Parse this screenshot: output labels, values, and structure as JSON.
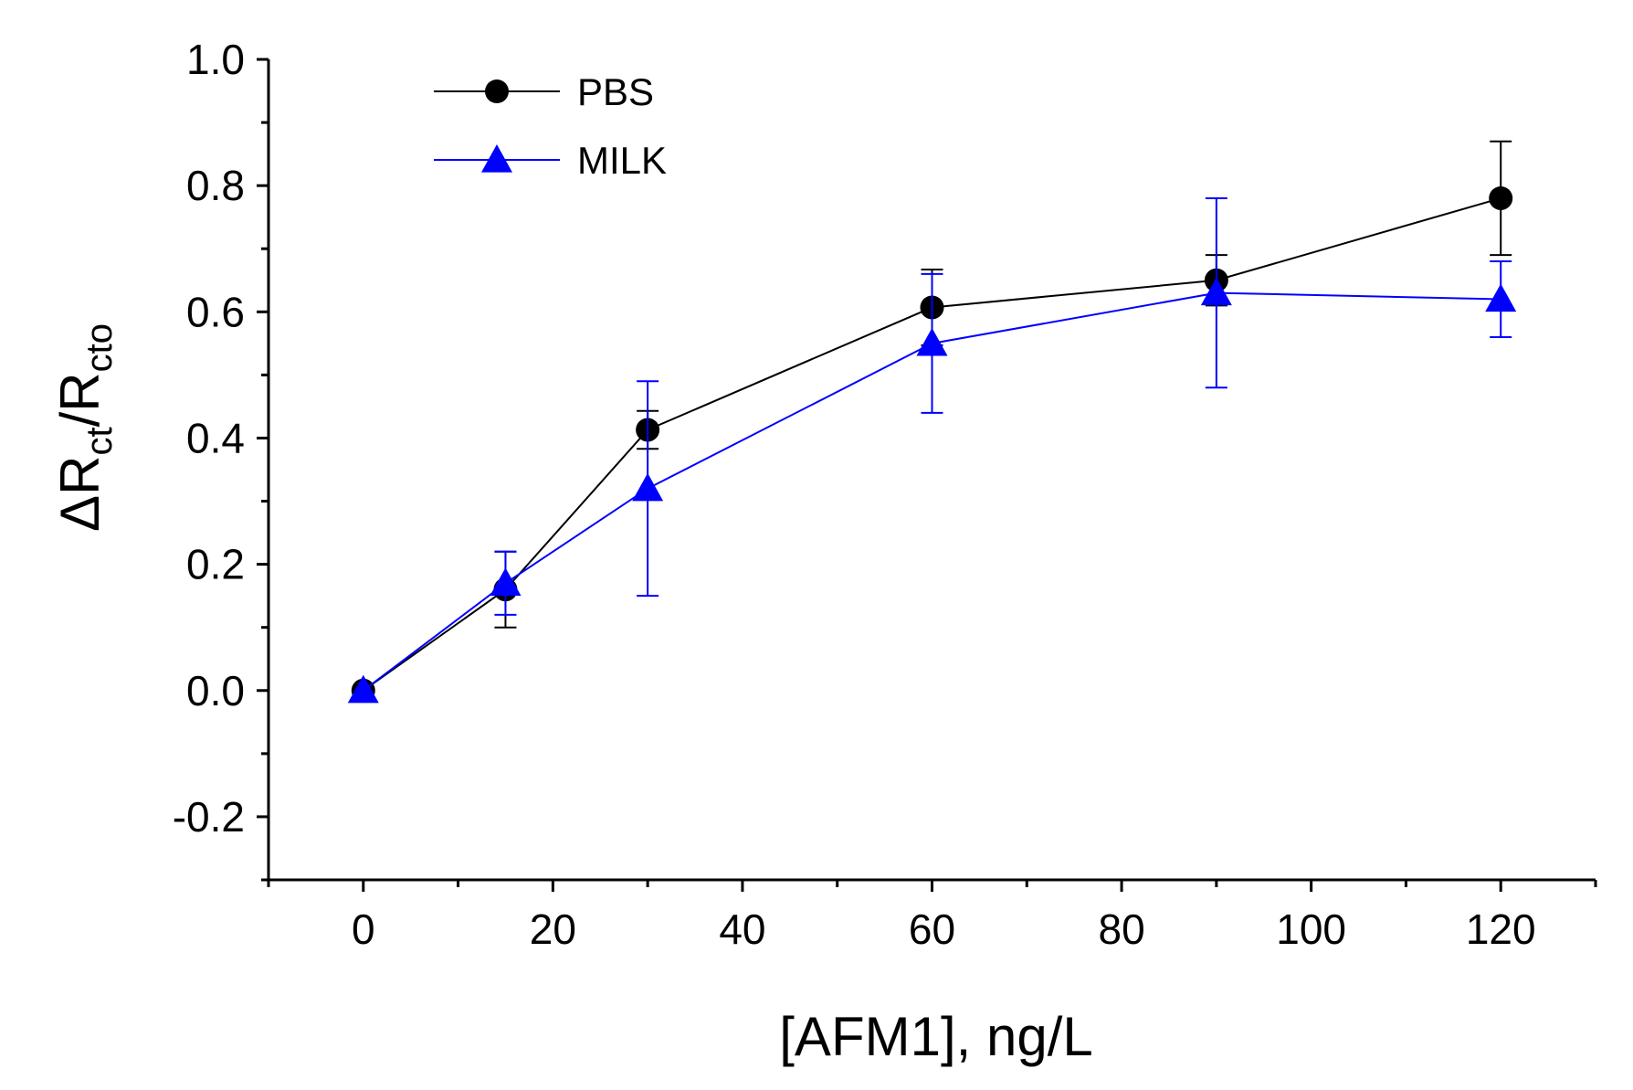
{
  "chart_data": {
    "type": "line",
    "title": "",
    "xlabel": "[AFM1], ng/L",
    "ylabel": {
      "main": "ΔR",
      "sub1": "ct",
      "slash": "/R",
      "sub2": "cto"
    },
    "xlim": [
      -10,
      130
    ],
    "ylim": [
      -0.3,
      1.0
    ],
    "xticks": [
      0,
      20,
      40,
      60,
      80,
      100,
      120
    ],
    "xtick_labels": [
      "0",
      "20",
      "40",
      "60",
      "80",
      "100",
      "120"
    ],
    "yticks": [
      -0.2,
      0.0,
      0.2,
      0.4,
      0.6,
      0.8,
      1.0
    ],
    "ytick_labels": [
      "-0.2",
      "0.0",
      "0.2",
      "0.4",
      "0.6",
      "0.8",
      "1.0"
    ],
    "legend_position": "top-left",
    "series": [
      {
        "name": "PBS",
        "color": "#000000",
        "marker": "circle",
        "x": [
          0,
          15,
          30,
          60,
          90,
          120
        ],
        "y": [
          0.0,
          0.16,
          0.413,
          0.607,
          0.65,
          0.78
        ],
        "err": [
          0.0,
          0.06,
          0.03,
          0.06,
          0.04,
          0.09
        ]
      },
      {
        "name": "MILK",
        "color": "#0000ff",
        "marker": "triangle",
        "x": [
          0,
          15,
          30,
          60,
          90,
          120
        ],
        "y": [
          0.0,
          0.17,
          0.32,
          0.55,
          0.63,
          0.62
        ],
        "err": [
          0.0,
          0.05,
          0.17,
          0.11,
          0.15,
          0.06
        ]
      }
    ]
  }
}
